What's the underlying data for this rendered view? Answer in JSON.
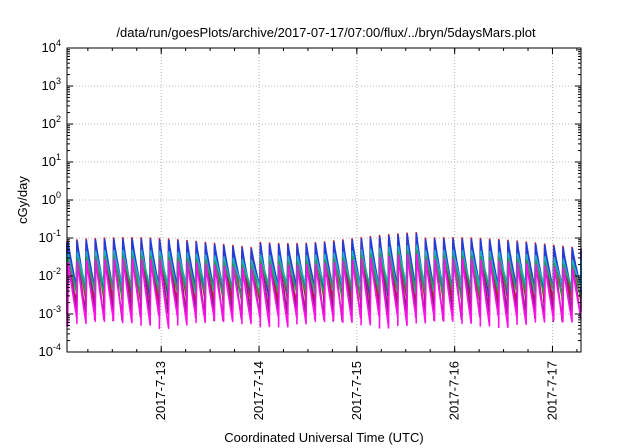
{
  "chart_data": {
    "type": "line",
    "title": "/data/run/goesPlots/archive/2017-07-17/07:00/flux/../bryn/5daysMars.plot",
    "xlabel": "Coordinated Universal Time (UTC)",
    "ylabel": "cGy/day",
    "y_scale": "log",
    "ylim": [
      0.0001,
      10000
    ],
    "xlim_days": [
      "2017-07-12 00:53",
      "2017-07-17 07:00"
    ],
    "y_ticks": [
      {
        "base": "10",
        "exp": "4"
      },
      {
        "base": "10",
        "exp": "3"
      },
      {
        "base": "10",
        "exp": "2"
      },
      {
        "base": "10",
        "exp": "1"
      },
      {
        "base": "10",
        "exp": "0"
      },
      {
        "base": "10",
        "exp": "-1"
      },
      {
        "base": "10",
        "exp": "-2"
      },
      {
        "base": "10",
        "exp": "-3"
      },
      {
        "base": "10",
        "exp": "-4"
      }
    ],
    "x_ticks": [
      "2017-7-13",
      "2017-7-14",
      "2017-7-15",
      "2017-7-16",
      "2017-7-17"
    ],
    "grid": true,
    "cycle_hours": 2.25,
    "series": [
      {
        "color": "#e0101a",
        "peak": 0.075,
        "trough": 0.0022
      },
      {
        "color": "#8a1f86",
        "peak": 0.06,
        "trough": 0.0009
      },
      {
        "color": "#1e3fe0",
        "peak": 0.07,
        "trough": 0.004
      },
      {
        "color": "#19b3c8",
        "peak": 0.035,
        "trough": 0.0045
      },
      {
        "color": "#2e9a52",
        "peak": 0.025,
        "trough": 0.0035
      },
      {
        "color": "#ff10e8",
        "peak": 0.02,
        "trough": 0.0006
      }
    ]
  }
}
